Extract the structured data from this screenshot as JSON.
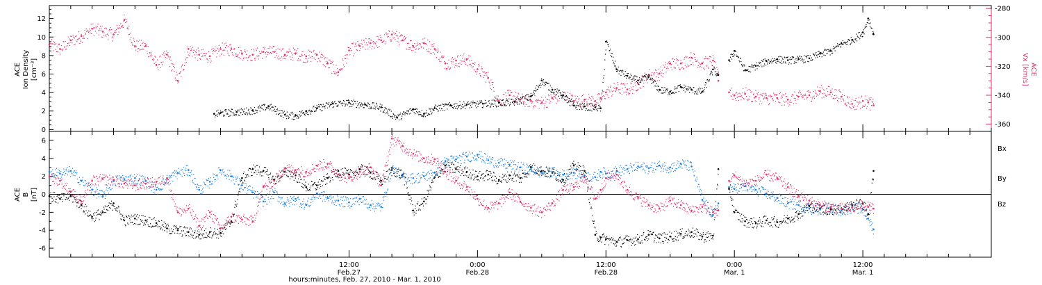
{
  "chart_data": [
    {
      "type": "scatter",
      "panel": "top",
      "xlabel": "hours:minutes, Feb. 27, 2010 - Mar. 1, 2010",
      "x_range_hours": [
        -16,
        72
      ],
      "x_ticks": [
        {
          "hour": 12,
          "time": "12:00",
          "date": "Feb.27"
        },
        {
          "hour": 24,
          "time": "0:00",
          "date": "Feb.28"
        },
        {
          "hour": 36,
          "time": "12:00",
          "date": "Feb.28"
        },
        {
          "hour": 48,
          "time": "0:00",
          "date": "Mar. 1"
        },
        {
          "hour": 60,
          "time": "12:00",
          "date": "Mar. 1"
        }
      ],
      "left_axis": {
        "label_lines": [
          "ACE",
          "Ion Density",
          "[cm⁻³]"
        ],
        "ylim": [
          -0.2,
          13.4
        ],
        "ticks": [
          0,
          2,
          4,
          6,
          8,
          10,
          12
        ],
        "color": "#000000"
      },
      "right_axis": {
        "label_lines": [
          "ACE",
          "Vx [km/s]"
        ],
        "ylim": [
          -365,
          -278
        ],
        "ticks": [
          -280,
          -300,
          -320,
          -340,
          -360
        ],
        "color": "#e0306a"
      },
      "series": [
        {
          "axis": "left",
          "color": "#000000",
          "x": [
            -0.6,
            0.0,
            1.5,
            3.0,
            4.5,
            6.0,
            7.0,
            8.0,
            9.0,
            10.5,
            12.0,
            13.5,
            15.0,
            16.5,
            18.0,
            19.0,
            20.0,
            21.5,
            23.0,
            24.5,
            26.0,
            27.5,
            29.0,
            30.0,
            31.0,
            32.0,
            33.0,
            34.0,
            35.0,
            35.5,
            36.0,
            37.0,
            38.0,
            39.0,
            40.0,
            41.0,
            42.0,
            43.0,
            44.0,
            45.0,
            46.0,
            46.5
          ],
          "y": [
            1.7,
            1.8,
            1.9,
            2.1,
            2.5,
            1.6,
            1.5,
            2.0,
            2.3,
            2.8,
            2.9,
            2.7,
            2.4,
            1.3,
            2.2,
            1.7,
            2.3,
            2.6,
            2.7,
            2.8,
            2.9,
            3.0,
            3.6,
            5.3,
            4.3,
            3.7,
            2.6,
            2.5,
            2.4,
            2.3,
            9.5,
            6.5,
            5.8,
            5.3,
            5.7,
            4.3,
            4.1,
            4.6,
            4.3,
            4.1,
            6.5,
            5.9
          ]
        },
        {
          "axis": "left",
          "color": "#000000",
          "x": [
            47.5,
            48.0,
            49.0,
            50.0,
            51.0,
            52.0,
            53.0,
            54.0,
            55.0,
            56.0,
            57.0,
            58.0,
            59.0,
            60.0,
            60.5,
            61.0
          ],
          "y": [
            7.5,
            8.5,
            6.4,
            6.9,
            7.4,
            7.6,
            7.5,
            7.6,
            7.7,
            8.2,
            8.5,
            9.3,
            9.7,
            10.5,
            12.0,
            10.3
          ]
        },
        {
          "axis": "right",
          "color": "#e0306a",
          "x": [
            -16.0,
            -15.0,
            -14.0,
            -13.0,
            -12.0,
            -11.0,
            -10.0,
            -9.0,
            -8.0,
            -7.0,
            -6.0,
            -5.0,
            -4.0,
            -3.0,
            -2.0,
            -1.0,
            0.0,
            1.0,
            2.0,
            3.0,
            4.0,
            5.0,
            6.0,
            7.0,
            8.0,
            9.0,
            10.0,
            11.0,
            12.0,
            13.0,
            14.0,
            15.0,
            16.0,
            17.0,
            18.0,
            19.0,
            20.0,
            21.0,
            22.0,
            23.0,
            24.0,
            25.0,
            26.0,
            27.0,
            28.0,
            29.0,
            30.0,
            31.0,
            32.0,
            33.0,
            34.0,
            35.0,
            35.5,
            36.0,
            37.0,
            38.0,
            39.0,
            40.0,
            41.0,
            42.0,
            43.0,
            44.0,
            45.0,
            46.0,
            46.5
          ],
          "y": [
            -305,
            -308,
            -302,
            -299,
            -294,
            -296,
            -298,
            -288,
            -306,
            -306,
            -319,
            -312,
            -330,
            -308,
            -312,
            -313,
            -308,
            -308,
            -311,
            -312,
            -310,
            -310,
            -312,
            -311,
            -313,
            -312,
            -318,
            -324,
            -309,
            -306,
            -304,
            -302,
            -298,
            -302,
            -306,
            -304,
            -308,
            -318,
            -316,
            -315,
            -322,
            -328,
            -344,
            -340,
            -343,
            -344,
            -345,
            -342,
            -340,
            -344,
            -343,
            -344,
            -342,
            -338,
            -335,
            -336,
            -332,
            -326,
            -325,
            -318,
            -318,
            -314,
            -318,
            -316,
            -330
          ]
        },
        {
          "axis": "right",
          "color": "#e0306a",
          "x": [
            47.5,
            48.0,
            49.0,
            50.0,
            51.0,
            52.0,
            53.0,
            54.0,
            55.0,
            56.0,
            57.0,
            58.0,
            59.0,
            60.0,
            60.5,
            61.0
          ],
          "y": [
            -338,
            -340,
            -339,
            -341,
            -342,
            -342,
            -343,
            -341,
            -340,
            -337,
            -338,
            -341,
            -346,
            -344,
            -345,
            -347
          ]
        }
      ]
    },
    {
      "type": "scatter",
      "panel": "bottom",
      "ylabel_lines": [
        "ACE",
        "B",
        "[nT]"
      ],
      "ylim": [
        -7,
        7
      ],
      "ticks": [
        6,
        4,
        2,
        0,
        -2,
        -4,
        -6
      ],
      "zero_line": true,
      "legend": [
        "Bx",
        "By",
        "Bz"
      ],
      "series": [
        {
          "name": "Bx",
          "color": "#000000",
          "x": [
            -16.0,
            -15.0,
            -14.0,
            -13.0,
            -12.0,
            -11.0,
            -10.0,
            -9.0,
            -8.0,
            -7.0,
            -6.0,
            -5.0,
            -4.0,
            -3.0,
            -2.0,
            -1.0,
            0.0,
            1.0,
            2.0,
            3.0,
            4.0,
            5.0,
            6.0,
            7.0,
            8.0,
            9.0,
            10.0,
            11.0,
            12.0,
            13.0,
            14.0,
            15.0,
            16.0,
            17.0,
            18.0,
            19.0,
            20.0,
            21.0,
            22.0,
            23.0,
            24.0,
            25.0,
            26.0,
            27.0,
            28.0,
            29.0,
            30.0,
            31.0,
            32.0,
            33.0,
            34.0,
            35.0,
            35.5,
            36.0,
            37.0,
            38.0,
            39.0,
            40.0,
            41.0,
            42.0,
            43.0,
            44.0,
            45.0,
            46.0,
            46.5
          ],
          "y": [
            -0.2,
            -0.5,
            -0.2,
            -1.2,
            -2.5,
            -2.0,
            -1.0,
            -2.9,
            -2.7,
            -2.9,
            -3.2,
            -3.8,
            -4.0,
            -4.2,
            -4.5,
            -4.2,
            -4.3,
            -3.0,
            1.8,
            2.8,
            2.6,
            1.6,
            2.5,
            2.1,
            0.8,
            1.0,
            1.8,
            2.6,
            2.2,
            2.8,
            2.4,
            1.5,
            2.7,
            2.2,
            -1.8,
            -0.8,
            1.9,
            3.2,
            2.8,
            2.5,
            2.0,
            2.2,
            1.6,
            2.1,
            1.8,
            3.0,
            2.6,
            2.4,
            1.6,
            3.2,
            2.6,
            -4.5,
            -4.8,
            -5.0,
            -5.3,
            -5.1,
            -5.0,
            -4.5,
            -4.9,
            -4.7,
            -4.4,
            -4.2,
            -4.7,
            -4.6,
            2.8
          ]
        },
        {
          "name": "Bx",
          "color": "#000000",
          "x": [
            47.5,
            48.0,
            49.0,
            50.0,
            51.0,
            52.0,
            53.0,
            54.0,
            55.0,
            56.0,
            57.0,
            58.0,
            59.0,
            60.0,
            60.5,
            61.0
          ],
          "y": [
            0.6,
            -2.0,
            -3.0,
            -3.2,
            -2.9,
            -3.1,
            -2.7,
            -2.2,
            -1.3,
            -1.6,
            -1.7,
            -1.6,
            -1.2,
            -1.0,
            -2.2,
            2.6
          ]
        },
        {
          "name": "By",
          "color": "#1a7fe0",
          "x": [
            -16.0,
            -15.0,
            -14.0,
            -13.0,
            -12.0,
            -11.0,
            -10.0,
            -9.0,
            -8.0,
            -7.0,
            -6.0,
            -5.0,
            -4.0,
            -3.0,
            -2.0,
            -1.0,
            0.0,
            1.0,
            2.0,
            3.0,
            4.0,
            5.0,
            6.0,
            7.0,
            8.0,
            9.0,
            10.0,
            11.0,
            12.0,
            13.0,
            14.0,
            15.0,
            16.0,
            17.0,
            18.0,
            19.0,
            20.0,
            21.0,
            22.0,
            23.0,
            24.0,
            25.0,
            26.0,
            27.0,
            28.0,
            29.0,
            30.0,
            31.0,
            32.0,
            33.0,
            34.0,
            35.0,
            35.5,
            36.0,
            37.0,
            38.0,
            39.0,
            40.0,
            41.0,
            42.0,
            43.0,
            44.0,
            45.0,
            46.0,
            46.5
          ],
          "y": [
            2.5,
            2.3,
            2.6,
            1.5,
            0.5,
            -0.2,
            1.5,
            1.7,
            1.8,
            1.5,
            0.5,
            1.7,
            2.4,
            2.7,
            0.5,
            1.4,
            2.7,
            2.0,
            1.0,
            0.2,
            -0.8,
            0.2,
            -1.0,
            -0.5,
            -1.2,
            0.1,
            -0.4,
            -0.7,
            -0.9,
            -0.5,
            -1.2,
            -1.4,
            2.9,
            2.0,
            1.8,
            2.0,
            2.4,
            3.7,
            3.9,
            4.2,
            4.4,
            3.8,
            3.5,
            3.3,
            3.0,
            2.8,
            2.4,
            2.5,
            2.2,
            2.4,
            2.1,
            1.9,
            2.5,
            2.3,
            2.6,
            2.8,
            3.1,
            2.9,
            3.2,
            3.0,
            3.4,
            3.1,
            -0.6,
            -2.3,
            -1.0
          ]
        },
        {
          "name": "By",
          "color": "#1a7fe0",
          "x": [
            47.5,
            48.0,
            49.0,
            50.0,
            51.0,
            52.0,
            53.0,
            54.0,
            55.0,
            56.0,
            57.0,
            58.0,
            59.0,
            60.0,
            60.5,
            61.0
          ],
          "y": [
            0.8,
            0.6,
            0.9,
            0.5,
            0.1,
            -0.4,
            -1.0,
            -1.2,
            -1.6,
            -1.7,
            -1.5,
            -1.8,
            -1.4,
            -1.7,
            -2.7,
            -3.9
          ]
        },
        {
          "name": "Bz",
          "color": "#e0306a",
          "x": [
            -16.0,
            -15.0,
            -14.0,
            -13.0,
            -12.0,
            -11.0,
            -10.0,
            -9.0,
            -8.0,
            -7.0,
            -6.0,
            -5.0,
            -4.0,
            -3.0,
            -2.0,
            -1.0,
            0.0,
            1.0,
            2.0,
            3.0,
            4.0,
            5.0,
            6.0,
            7.0,
            8.0,
            9.0,
            10.0,
            11.0,
            12.0,
            13.0,
            14.0,
            15.0,
            16.0,
            17.0,
            18.0,
            19.0,
            20.0,
            21.0,
            22.0,
            23.0,
            24.0,
            25.0,
            26.0,
            27.0,
            28.0,
            29.0,
            30.0,
            31.0,
            32.0,
            33.0,
            34.0,
            35.0,
            35.5,
            36.0,
            37.0,
            38.0,
            39.0,
            40.0,
            41.0,
            42.0,
            43.0,
            44.0,
            45.0,
            46.0,
            46.5
          ],
          "y": [
            2.0,
            1.5,
            0.3,
            -0.8,
            1.5,
            1.7,
            1.6,
            1.2,
            1.0,
            1.2,
            1.4,
            1.8,
            -2.0,
            -1.6,
            -3.5,
            -2.0,
            -3.8,
            -2.5,
            -2.8,
            -3.0,
            0.8,
            1.5,
            2.9,
            2.7,
            2.5,
            3.2,
            3.4,
            2.2,
            1.8,
            2.5,
            3.0,
            1.0,
            6.2,
            5.4,
            4.5,
            4.0,
            3.9,
            2.5,
            1.5,
            0.8,
            -0.5,
            -1.5,
            -1.0,
            0.2,
            -0.8,
            -1.5,
            -2.0,
            -1.0,
            0.5,
            0.8,
            1.9,
            -0.5,
            0.5,
            1.8,
            2.2,
            0.5,
            -0.4,
            -1.2,
            -1.6,
            -0.7,
            -1.2,
            -1.8,
            -1.4,
            -2.0,
            -1.8
          ]
        },
        {
          "name": "Bz",
          "color": "#e0306a",
          "x": [
            47.5,
            48.0,
            49.0,
            50.0,
            51.0,
            52.0,
            53.0,
            54.0,
            55.0,
            56.0,
            57.0,
            58.0,
            59.0,
            60.0,
            60.5,
            61.0
          ],
          "y": [
            1.5,
            2.1,
            1.2,
            1.5,
            2.2,
            1.8,
            0.8,
            -0.2,
            -0.7,
            -1.2,
            -1.4,
            -1.6,
            -1.5,
            -1.1,
            -1.4,
            -1.6
          ]
        }
      ]
    }
  ]
}
